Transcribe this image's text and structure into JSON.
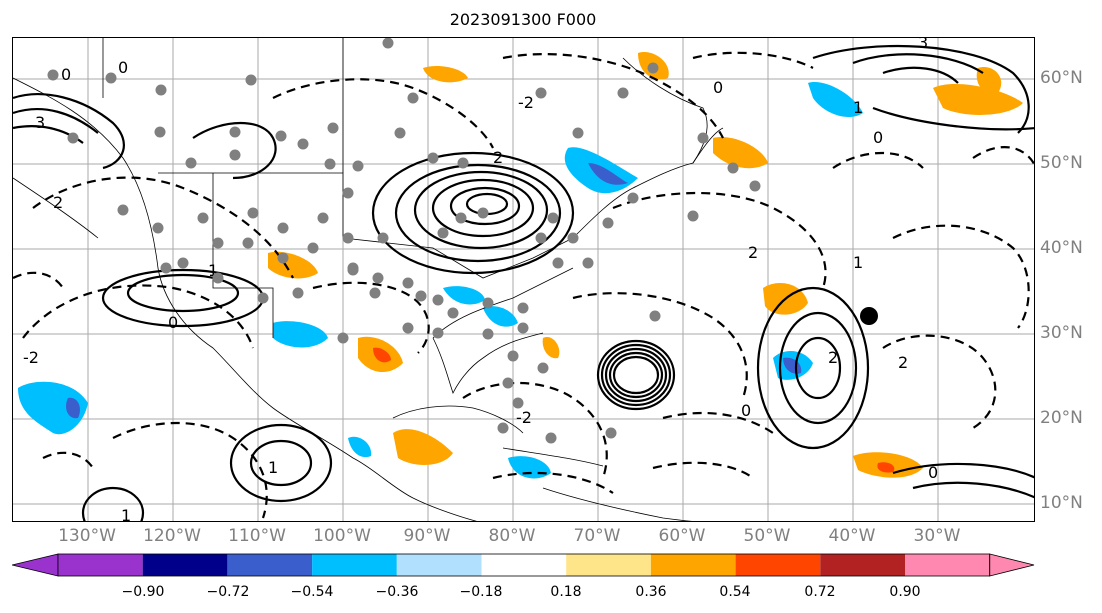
{
  "title": "2023091300 F000",
  "lon_labels": [
    "130°W",
    "120°W",
    "110°W",
    "100°W",
    "90°W",
    "80°W",
    "70°W",
    "60°W",
    "50°W",
    "40°W",
    "30°W"
  ],
  "lat_labels": [
    "60°N",
    "50°N",
    "40°N",
    "30°N",
    "20°N",
    "10°N"
  ],
  "colorbar": {
    "tick_labels": [
      "−0.90",
      "−0.72",
      "−0.54",
      "−0.36",
      "−0.18",
      "0.18",
      "0.36",
      "0.54",
      "0.72",
      "0.90"
    ],
    "colors": [
      "#9a32cd",
      "#00008b",
      "#3a5fcd",
      "#00bfff",
      "#b0e0fe",
      "#ffffff",
      "#ffe58a",
      "#ffa500",
      "#ff4500",
      "#b22222",
      "#ff88b0"
    ]
  },
  "contour_labels": [
    "0",
    "1",
    "2",
    "3",
    "-1",
    "-2"
  ],
  "colors": {
    "gridline": "#aaaaaa",
    "station_dot": "#808080",
    "axis_label": "#808080"
  }
}
